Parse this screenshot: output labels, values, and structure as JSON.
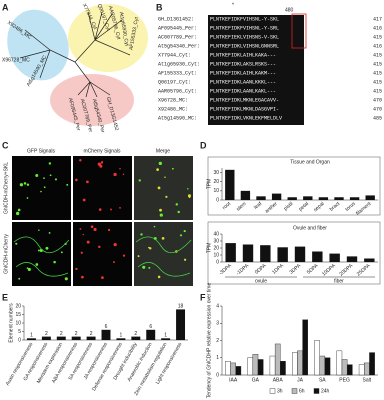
{
  "panel_labels": [
    "A",
    "B",
    "C",
    "D",
    "E",
    "F"
  ],
  "tree": {
    "leaves": [
      "X92486_MC",
      "X96728_MC",
      "At5g14590_MC",
      "X77944_Cyt",
      "Q06197_Cyt",
      "AAR05796_Cyt",
      "At1g65930_Cyt",
      "AF155333_Cyt",
      "AF095445_Per",
      "AC007789_Per",
      "At5g54340_Per",
      "GH_D13G1452"
    ]
  },
  "alignment": {
    "star": "*",
    "marker": "480",
    "rows": [
      {
        "name": "GH_D13G1452:",
        "seq": "PLNTKEFIDKFVIHSNL-Y-SKL",
        "end": "417"
      },
      {
        "name": "AF095445_Per:",
        "seq": "PLNTKEFIDKFVIHSNL-Y-SRL",
        "end": "416"
      },
      {
        "name": "AC007789_Per:",
        "seq": "PLNTKEFIEKLVIHSNS-V-SKL",
        "end": "415"
      },
      {
        "name": "At5g54340_Per:",
        "seq": "PLNTKEFIDKLVIHSNLGNNSRL",
        "end": "416"
      },
      {
        "name": "X77944_Cyt:",
        "seq": "PLNTKEFIDKLAIHLKAKA---",
        "end": "415"
      },
      {
        "name": "At1g65930_Cyt:",
        "seq": "PLNTKEFIDKLAKSLRSKS---",
        "end": "415"
      },
      {
        "name": "AF155333_Cyt:",
        "seq": "PLNTKEFIDKLAIHLKAKM---",
        "end": "415"
      },
      {
        "name": "Q06197_Cyt:",
        "seq": "PLNTKEFIDKLAANLKKKL---",
        "end": "415"
      },
      {
        "name": "AAR05796_Cyt:",
        "seq": "PLNTKEFIDKLAANLKAKL---",
        "end": "415"
      },
      {
        "name": "X96728_MC:",
        "seq": "PLNTKEFIDKLMKNLEGACAVV-",
        "end": "470"
      },
      {
        "name": "X92486_MC:",
        "seq": "PLNTKEFIDKLMKNLDASGVPI-",
        "end": "470"
      },
      {
        "name": "At5g14590_MC:",
        "seq": "PLNTKEFIDKLVKNLEKFMELDLV",
        "end": "485"
      }
    ]
  },
  "microscopy": {
    "columns": [
      "GFP Signals",
      "mCherry Signals",
      "Merge"
    ],
    "rows": [
      "GhICDH-mCherry+SKL",
      "GhICDH-mCherry"
    ]
  },
  "chart_data": [
    {
      "type": "bar",
      "title": "Tissue and Organ",
      "y_label": "TPM",
      "categories": [
        "root",
        "stem",
        "leaf",
        "anther",
        "pistil",
        "petal",
        "sepal",
        "bract",
        "torus",
        "filament"
      ],
      "values": [
        33,
        10,
        4,
        7,
        3,
        4,
        3,
        3,
        3,
        5
      ],
      "color": "#111111",
      "ylim": [
        0,
        35
      ],
      "yticks": [
        0,
        10,
        20,
        30
      ]
    },
    {
      "type": "bar",
      "title": "Ovule and fiber",
      "y_label": "TPM",
      "categories": [
        "-3DPA",
        "-1DPA",
        "0DPA",
        "1DPA",
        "3DPA",
        "5DPA",
        "10DPA",
        "20DPA",
        "25DPA"
      ],
      "groups": [
        "ovule",
        "fiber"
      ],
      "values": [
        27,
        25,
        24,
        21,
        22,
        15,
        12,
        8,
        5
      ],
      "color": "#111111",
      "ylim": [
        0,
        40
      ],
      "yticks": [
        0,
        10,
        20,
        30,
        40
      ]
    },
    {
      "type": "bar",
      "y_label": "Element numbers",
      "categories": [
        "Auxin responsiveness",
        "GA responsiveness",
        "Meristem expression",
        "ABA responsiveness",
        "SA responsiveness",
        "JA responsiveness",
        "Defense responsiveness",
        "Drought inducibility",
        "Anaerobic induction",
        "Zein metabolism regulation",
        "Light responsiveness"
      ],
      "values": [
        1,
        2,
        2,
        2,
        2,
        6,
        1,
        2,
        6,
        1,
        18
      ],
      "color": "#111111",
      "ylim": [
        0,
        20
      ],
      "yticks": [
        0,
        5,
        10,
        15,
        20
      ],
      "data_labels": true
    },
    {
      "type": "grouped-bar",
      "y_label": "Tendency of GhICDHP relative expression over time",
      "categories": [
        "IAA",
        "GA",
        "ABA",
        "JA",
        "SA",
        "PEG",
        "Salt"
      ],
      "series": [
        {
          "name": "3h",
          "color": "#ffffff",
          "values": [
            0.8,
            1.0,
            1.1,
            1.3,
            2.0,
            1.4,
            0.6
          ]
        },
        {
          "name": "6h",
          "color": "#bbbbbb",
          "values": [
            0.7,
            1.2,
            1.8,
            1.4,
            1.1,
            0.9,
            0.7
          ]
        },
        {
          "name": "24h",
          "color": "#111111",
          "values": [
            0.5,
            0.9,
            0.8,
            3.2,
            1.0,
            0.6,
            1.3
          ]
        }
      ],
      "ylim": [
        0,
        4
      ],
      "yticks": [
        0,
        1,
        2,
        3,
        4
      ]
    }
  ]
}
